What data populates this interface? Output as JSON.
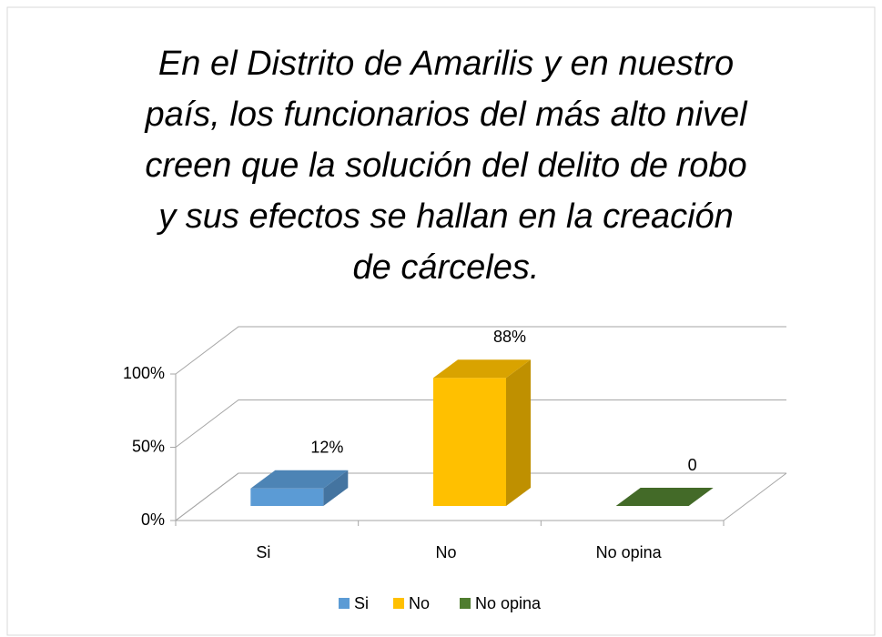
{
  "chart_data": {
    "type": "bar3d",
    "title": [
      "En el Distrito de Amarilis y en nuestro",
      "país, los funcionarios del más alto nivel",
      "creen que la solución del delito de robo",
      "y sus efectos se hallan en la creación",
      "de cárceles."
    ],
    "categories": [
      "Si",
      "No",
      "No opina"
    ],
    "values": [
      12,
      88,
      0
    ],
    "value_labels": [
      "12%",
      "88%",
      "0"
    ],
    "colors": [
      "#5b9bd5",
      "#ffc000",
      "#4f7d2f"
    ],
    "ylim": [
      0,
      100
    ],
    "yticks": [
      {
        "value": 0,
        "label": "0%"
      },
      {
        "value": 50,
        "label": "50%"
      },
      {
        "value": 100,
        "label": "100%"
      }
    ],
    "grid": true,
    "legend": "bottom"
  }
}
